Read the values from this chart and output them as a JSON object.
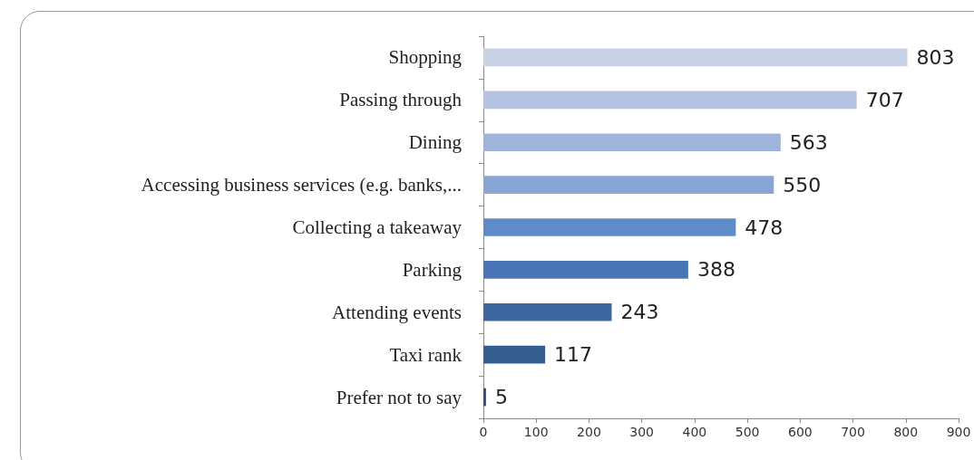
{
  "chart_data": {
    "type": "bar",
    "orientation": "horizontal",
    "categories": [
      "Shopping",
      "Passing through",
      "Dining",
      "Accessing business services (e.g. banks,...",
      "Collecting a takeaway",
      "Parking",
      "Attending events",
      "Taxi rank",
      "Prefer not to say"
    ],
    "values": [
      803,
      707,
      563,
      550,
      478,
      388,
      243,
      117,
      5
    ],
    "colors": [
      "#c8d2e7",
      "#b3c3e1",
      "#9fb4db",
      "#88a5d3",
      "#5f8bc8",
      "#4a76b8",
      "#3e679f",
      "#355d90",
      "#2d4f7d"
    ],
    "xlim": [
      0,
      900
    ],
    "xticks": [
      0,
      100,
      200,
      300,
      400,
      500,
      600,
      700,
      800,
      900
    ],
    "data_labels": true,
    "grid": false
  }
}
